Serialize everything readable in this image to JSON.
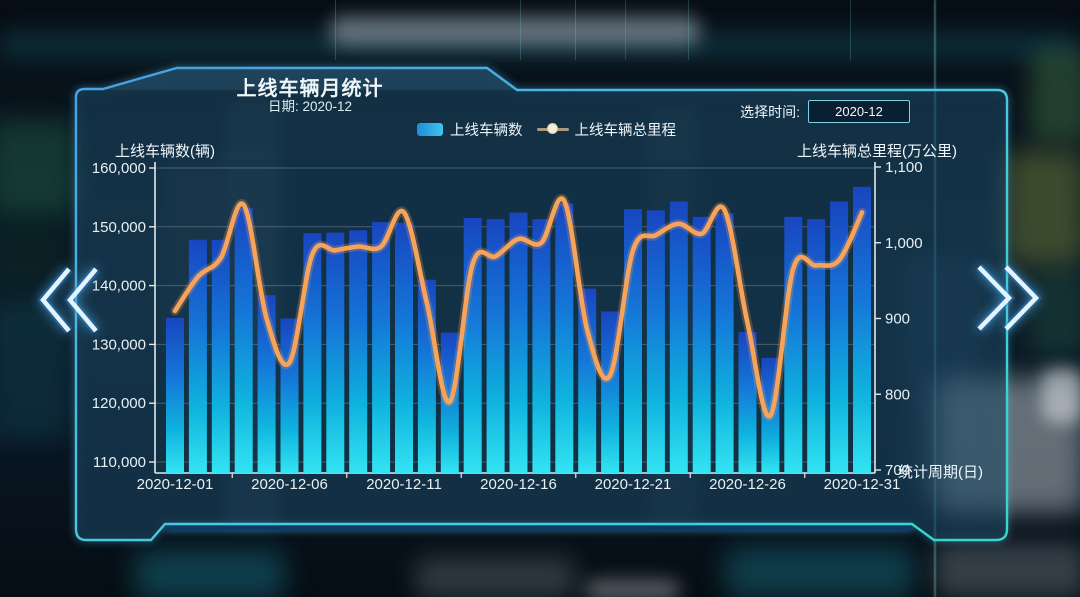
{
  "panel": {
    "title": "上线车辆月统计",
    "subtitle": "日期:  2020-12"
  },
  "time_picker": {
    "label": "选择时间:",
    "value": "2020-12"
  },
  "legend": {
    "bar_label": "上线车辆数",
    "line_label": "上线车辆总里程"
  },
  "nav": {
    "prev_icon": "double-chevron-left",
    "next_icon": "double-chevron-right"
  },
  "chart_data": {
    "type": "bar+line",
    "title": "上线车辆月统计",
    "categories": [
      "2020-12-01",
      "2020-12-02",
      "2020-12-03",
      "2020-12-04",
      "2020-12-05",
      "2020-12-06",
      "2020-12-07",
      "2020-12-08",
      "2020-12-09",
      "2020-12-10",
      "2020-12-11",
      "2020-12-12",
      "2020-12-13",
      "2020-12-14",
      "2020-12-15",
      "2020-12-16",
      "2020-12-17",
      "2020-12-18",
      "2020-12-19",
      "2020-12-20",
      "2020-12-21",
      "2020-12-22",
      "2020-12-23",
      "2020-12-24",
      "2020-12-25",
      "2020-12-26",
      "2020-12-27",
      "2020-12-28",
      "2020-12-29",
      "2020-12-30",
      "2020-12-31"
    ],
    "series": [
      {
        "name": "上线车辆数",
        "type": "bar",
        "axis": "left",
        "values": [
          134500,
          147800,
          147800,
          153200,
          138400,
          134400,
          148900,
          149000,
          149400,
          150800,
          150700,
          141000,
          132000,
          151500,
          151300,
          152400,
          151300,
          154000,
          139500,
          135600,
          153000,
          152800,
          154300,
          151700,
          152300,
          132100,
          127700,
          151700,
          151300,
          154300,
          156800
        ]
      },
      {
        "name": "上线车辆总里程",
        "type": "line",
        "axis": "right",
        "values": [
          910,
          955,
          980,
          1050,
          900,
          842,
          985,
          990,
          995,
          995,
          1040,
          920,
          790,
          972,
          982,
          1005,
          1000,
          1055,
          885,
          825,
          990,
          1010,
          1025,
          1012,
          1043,
          894,
          772,
          966,
          970,
          977,
          1040
        ]
      }
    ],
    "left_axis": {
      "name": "上线车辆数(辆)",
      "ticks": [
        110000,
        120000,
        130000,
        140000,
        150000,
        160000
      ],
      "tick_labels": [
        "110,000",
        "120,000",
        "130,000",
        "140,000",
        "150,000",
        "160,000"
      ]
    },
    "right_axis": {
      "name": "上线车辆总里程(万公里)",
      "ticks": [
        700,
        800,
        900,
        1000,
        1100
      ],
      "tick_labels": [
        "700",
        "800",
        "900",
        "1,000",
        "1,100"
      ]
    },
    "x_axis": {
      "name": "统计周期(日)",
      "tick_labels": [
        "2020-12-01",
        "2020-12-06",
        "2020-12-11",
        "2020-12-16",
        "2020-12-21",
        "2020-12-26",
        "2020-12-31"
      ]
    },
    "grid": true,
    "legend_position": "top"
  },
  "colors": {
    "bar_gradient": [
      "#1846c0",
      "#1575d8",
      "#0fb2de",
      "#33e4f2"
    ],
    "line": "#f7a45a",
    "legend_dot": "#f4eed6",
    "border_blue": "#4aa0e8",
    "border_teal": "#35d8c8",
    "axis": "#dfe9ee",
    "gridline": "rgba(220,230,235,0.26)"
  }
}
